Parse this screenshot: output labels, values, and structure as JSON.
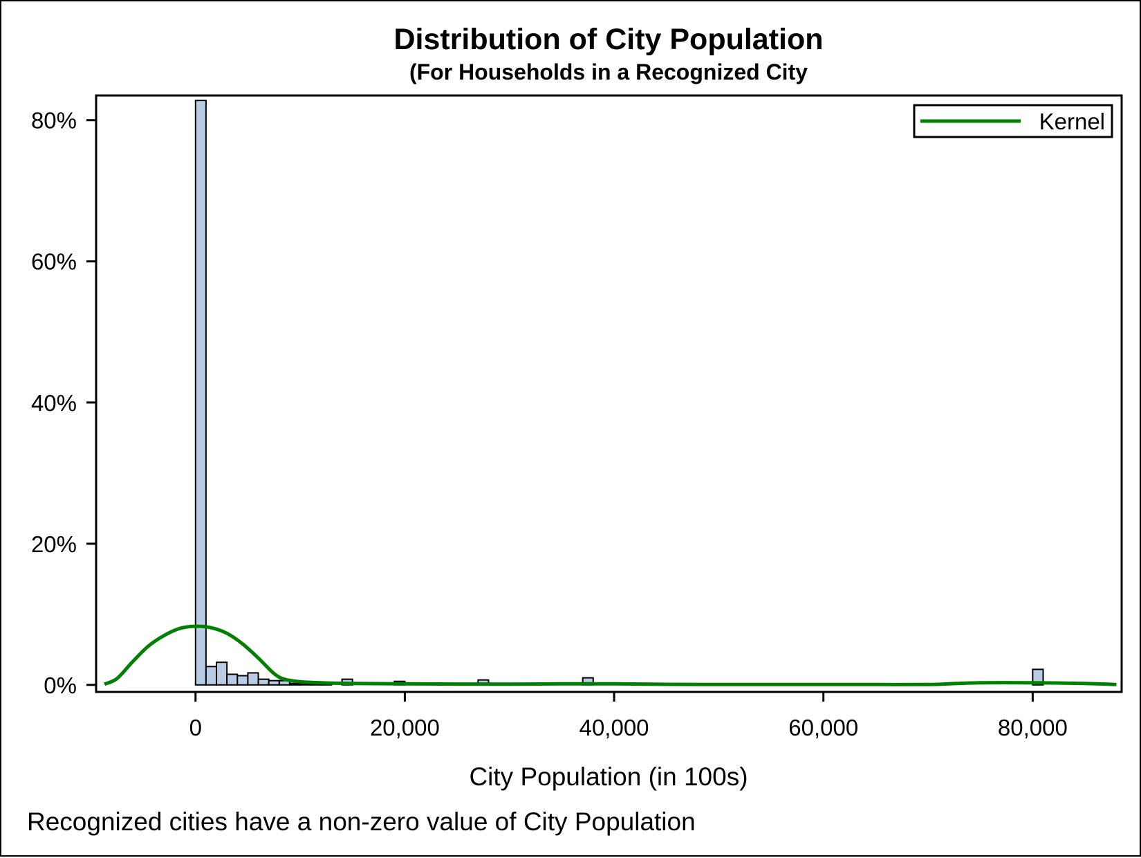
{
  "chart_data": {
    "type": "bar",
    "title": "Distribution of City Population",
    "subtitle": "(For Households in a Recognized City",
    "xlabel": "City Population (in 100s)",
    "ylabel": "",
    "footnote": "Recognized cities have a non-zero value of City Population",
    "xlim": [
      -9500,
      88500
    ],
    "ylim": [
      -1,
      83.5
    ],
    "x_ticks": [
      0,
      20000,
      40000,
      60000,
      80000
    ],
    "x_tick_labels": [
      "0",
      "20,000",
      "40,000",
      "60,000",
      "80,000"
    ],
    "y_ticks": [
      0,
      20,
      40,
      60,
      80
    ],
    "y_tick_labels": [
      "0%",
      "20%",
      "40%",
      "60%",
      "80%"
    ],
    "bin_width": 1000,
    "bins": [
      {
        "x": 0,
        "value": 82.8
      },
      {
        "x": 1000,
        "value": 2.6
      },
      {
        "x": 2000,
        "value": 3.2
      },
      {
        "x": 3000,
        "value": 1.5
      },
      {
        "x": 4000,
        "value": 1.3
      },
      {
        "x": 5000,
        "value": 1.7
      },
      {
        "x": 6000,
        "value": 0.8
      },
      {
        "x": 7000,
        "value": 0.6
      },
      {
        "x": 8000,
        "value": 0.6
      },
      {
        "x": 9000,
        "value": 0.2
      },
      {
        "x": 10000,
        "value": 0.15
      },
      {
        "x": 11000,
        "value": 0.1
      },
      {
        "x": 12000,
        "value": 0.1
      },
      {
        "x": 14000,
        "value": 0.8
      },
      {
        "x": 19000,
        "value": 0.5
      },
      {
        "x": 27000,
        "value": 0.7
      },
      {
        "x": 37000,
        "value": 1.0
      },
      {
        "x": 80000,
        "value": 2.2
      }
    ],
    "series": [
      {
        "name": "Kernel",
        "type": "line",
        "color": "#008000",
        "x": [
          -8700,
          -7500,
          -6000,
          -4500,
          -3000,
          -1500,
          0,
          1500,
          3000,
          4500,
          6000,
          7500,
          8500,
          10000,
          12000,
          15000,
          20000,
          25000,
          30000,
          35000,
          40000,
          45000,
          50000,
          55000,
          60000,
          65000,
          70000,
          72000,
          75000,
          80000,
          85000,
          88000
        ],
        "values": [
          0.1,
          0.9,
          3.3,
          5.5,
          7.0,
          8.0,
          8.3,
          8.1,
          7.3,
          5.8,
          3.8,
          1.6,
          0.8,
          0.45,
          0.3,
          0.2,
          0.15,
          0.12,
          0.1,
          0.15,
          0.15,
          0.08,
          0.05,
          0.05,
          0.05,
          0.05,
          0.05,
          0.15,
          0.3,
          0.3,
          0.2,
          0.05
        ]
      }
    ],
    "legend": {
      "position": "top-right",
      "entries": [
        "Kernel"
      ]
    },
    "grid": false,
    "colors": {
      "bar_fill": "#b8cce4",
      "bar_edge": "#000000",
      "kernel": "#008000"
    }
  }
}
